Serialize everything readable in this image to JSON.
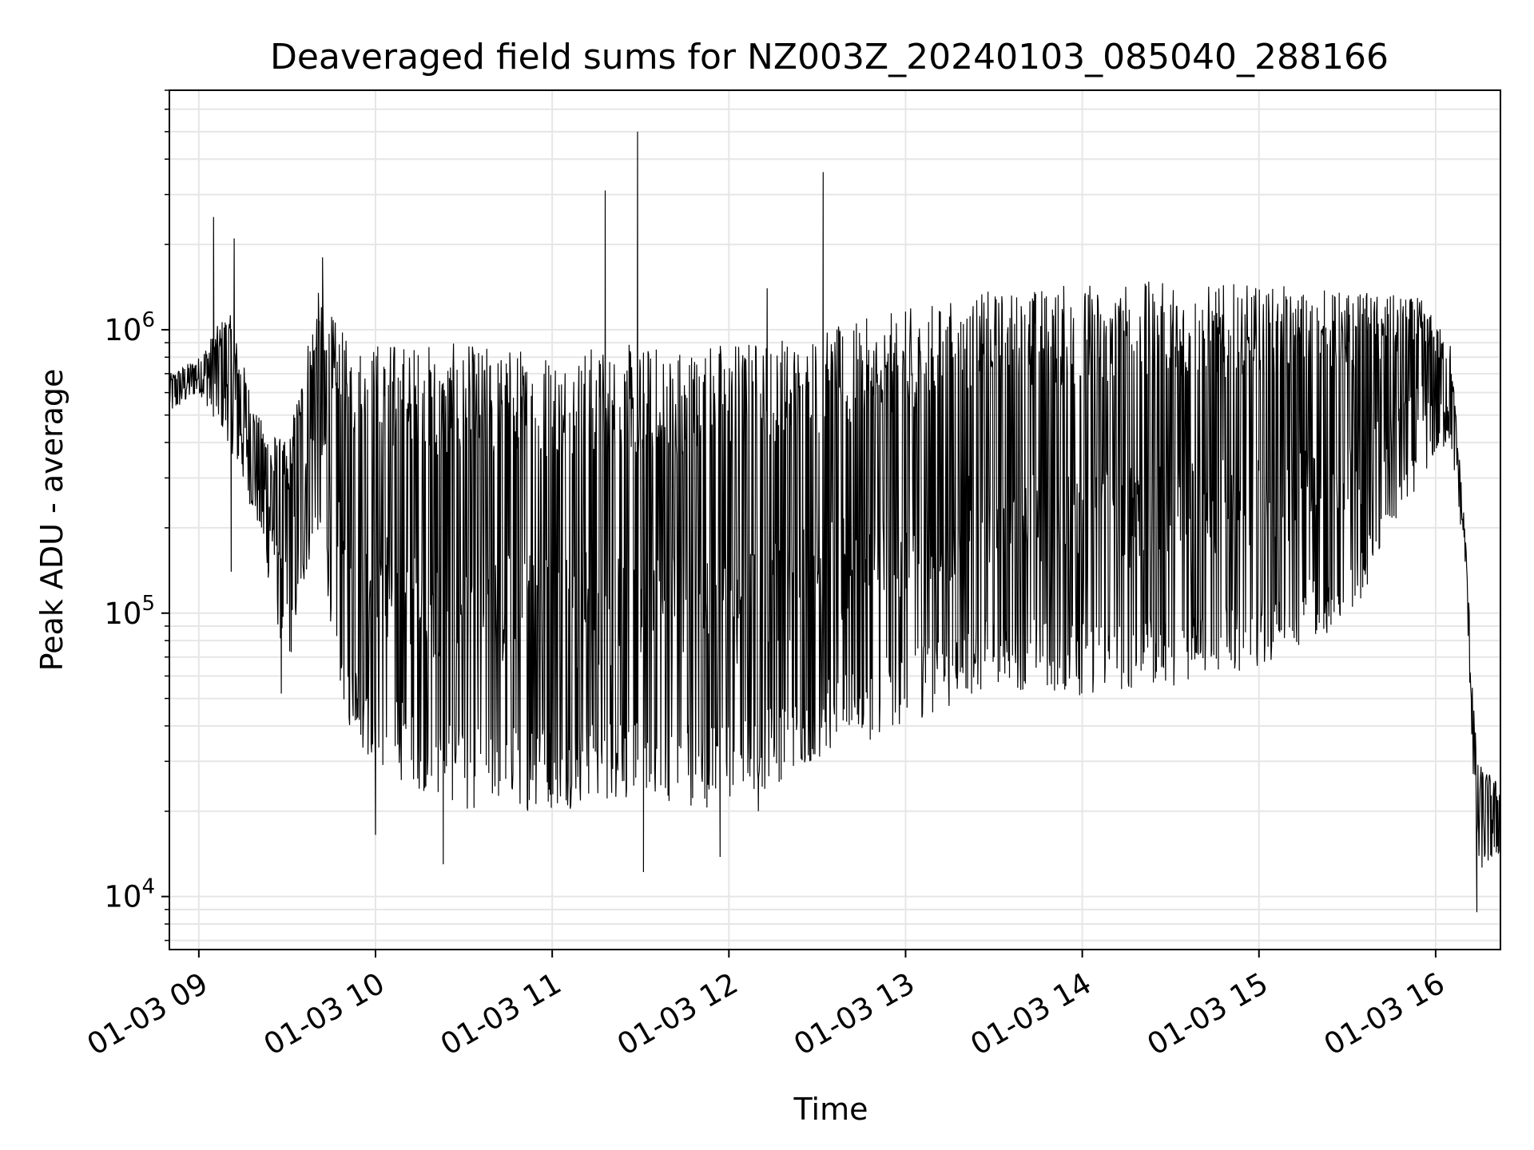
{
  "chart_data": {
    "type": "line",
    "title": "Deaveraged field sums for NZ003Z_20240103_085040_288166",
    "xlabel": "Time",
    "ylabel": "Peak ADU - average",
    "yscale": "log",
    "ylim": [
      6500,
      7000000
    ],
    "xlim": [
      "2024-01-03 08:50",
      "2024-01-03 16:22"
    ],
    "grid": true,
    "line_color": "#000000",
    "grid_color": "#e6e6e6",
    "x_ticks": [
      {
        "time": "2024-01-03 09:00",
        "label": "01-03 09"
      },
      {
        "time": "2024-01-03 10:00",
        "label": "01-03 10"
      },
      {
        "time": "2024-01-03 11:00",
        "label": "01-03 11"
      },
      {
        "time": "2024-01-03 12:00",
        "label": "01-03 12"
      },
      {
        "time": "2024-01-03 13:00",
        "label": "01-03 13"
      },
      {
        "time": "2024-01-03 14:00",
        "label": "01-03 14"
      },
      {
        "time": "2024-01-03 15:00",
        "label": "01-03 15"
      },
      {
        "time": "2024-01-03 16:00",
        "label": "01-03 16"
      }
    ],
    "y_ticks": [
      {
        "value": 10000,
        "base": "10",
        "exp": "4"
      },
      {
        "value": 100000,
        "base": "10",
        "exp": "5"
      },
      {
        "value": 1000000,
        "base": "10",
        "exp": "6"
      }
    ],
    "series": [
      {
        "upper_envelope": [
          [
            "2024-01-03 08:50",
            700000
          ],
          [
            "2024-01-03 09:00",
            800000
          ],
          [
            "2024-01-03 09:10",
            1200000
          ],
          [
            "2024-01-03 09:20",
            500000
          ],
          [
            "2024-01-03 09:30",
            400000
          ],
          [
            "2024-01-03 09:40",
            1400000
          ],
          [
            "2024-01-03 09:50",
            950000
          ],
          [
            "2024-01-03 10:00",
            950000
          ],
          [
            "2024-01-03 10:30",
            900000
          ],
          [
            "2024-01-03 11:00",
            900000
          ],
          [
            "2024-01-03 11:30",
            900000
          ],
          [
            "2024-01-03 12:00",
            950000
          ],
          [
            "2024-01-03 12:30",
            1000000
          ],
          [
            "2024-01-03 13:00",
            1200000
          ],
          [
            "2024-01-03 13:30",
            1400000
          ],
          [
            "2024-01-03 14:00",
            1500000
          ],
          [
            "2024-01-03 14:30",
            1500000
          ],
          [
            "2024-01-03 15:00",
            1450000
          ],
          [
            "2024-01-03 15:30",
            1400000
          ],
          [
            "2024-01-03 15:55",
            1300000
          ],
          [
            "2024-01-03 16:05",
            900000
          ],
          [
            "2024-01-03 16:10",
            200000
          ],
          [
            "2024-01-03 16:14",
            30000
          ],
          [
            "2024-01-03 16:22",
            25000
          ]
        ],
        "lower_envelope": [
          [
            "2024-01-03 08:50",
            500000
          ],
          [
            "2024-01-03 09:00",
            600000
          ],
          [
            "2024-01-03 09:10",
            400000
          ],
          [
            "2024-01-03 09:20",
            200000
          ],
          [
            "2024-01-03 09:30",
            60000
          ],
          [
            "2024-01-03 09:40",
            200000
          ],
          [
            "2024-01-03 09:50",
            40000
          ],
          [
            "2024-01-03 10:00",
            28000
          ],
          [
            "2024-01-03 10:30",
            20000
          ],
          [
            "2024-01-03 11:00",
            20000
          ],
          [
            "2024-01-03 11:30",
            22000
          ],
          [
            "2024-01-03 12:00",
            20000
          ],
          [
            "2024-01-03 12:30",
            30000
          ],
          [
            "2024-01-03 13:00",
            40000
          ],
          [
            "2024-01-03 13:30",
            55000
          ],
          [
            "2024-01-03 14:00",
            50000
          ],
          [
            "2024-01-03 14:30",
            55000
          ],
          [
            "2024-01-03 15:00",
            65000
          ],
          [
            "2024-01-03 15:30",
            90000
          ],
          [
            "2024-01-03 15:55",
            300000
          ],
          [
            "2024-01-03 16:05",
            400000
          ],
          [
            "2024-01-03 16:10",
            150000
          ],
          [
            "2024-01-03 16:14",
            12000
          ],
          [
            "2024-01-03 16:22",
            14000
          ]
        ],
        "peaks": [
          [
            "2024-01-03 09:05",
            2500000
          ],
          [
            "2024-01-03 09:12",
            2100000
          ],
          [
            "2024-01-03 09:42",
            1800000
          ],
          [
            "2024-01-03 11:18",
            3100000
          ],
          [
            "2024-01-03 11:29",
            5000000
          ],
          [
            "2024-01-03 12:13",
            1400000
          ],
          [
            "2024-01-03 12:32",
            3600000
          ]
        ],
        "dips": [
          [
            "2024-01-03 09:11",
            140000
          ],
          [
            "2024-01-03 09:28",
            52000
          ],
          [
            "2024-01-03 10:00",
            16500
          ],
          [
            "2024-01-03 10:23",
            13000
          ],
          [
            "2024-01-03 11:31",
            12200
          ],
          [
            "2024-01-03 11:57",
            13800
          ],
          [
            "2024-01-03 12:10",
            20000
          ],
          [
            "2024-01-03 16:14",
            8800
          ]
        ]
      }
    ]
  }
}
